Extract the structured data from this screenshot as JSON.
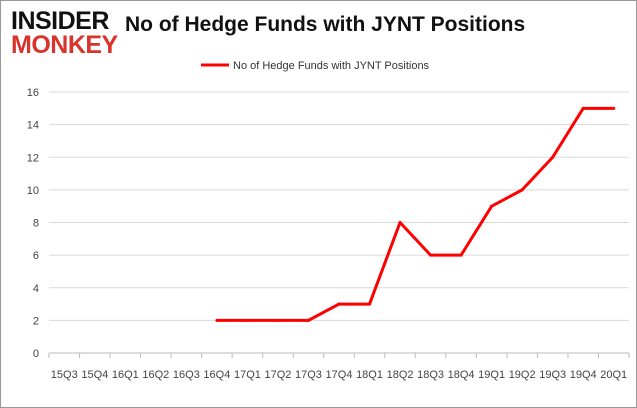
{
  "logo": {
    "line1": "INSIDER",
    "line2": "MONKEY"
  },
  "chart_data": {
    "type": "line",
    "title": "No of Hedge Funds with JYNT Positions",
    "legend": "top",
    "grid": true,
    "ylim": [
      0,
      16
    ],
    "yticks": [
      0,
      2,
      4,
      6,
      8,
      10,
      12,
      14,
      16
    ],
    "categories": [
      "15Q3",
      "15Q4",
      "16Q1",
      "16Q2",
      "16Q3",
      "16Q4",
      "17Q1",
      "17Q2",
      "17Q3",
      "17Q4",
      "18Q1",
      "18Q2",
      "18Q3",
      "18Q4",
      "19Q1",
      "19Q2",
      "19Q3",
      "19Q4",
      "20Q1"
    ],
    "series": [
      {
        "name": "No of Hedge Funds with JYNT Positions",
        "color": "#ff0000",
        "values": [
          null,
          null,
          null,
          null,
          null,
          2,
          2,
          2,
          2,
          3,
          3,
          8,
          6,
          6,
          9,
          10,
          12,
          15,
          15
        ]
      }
    ]
  }
}
